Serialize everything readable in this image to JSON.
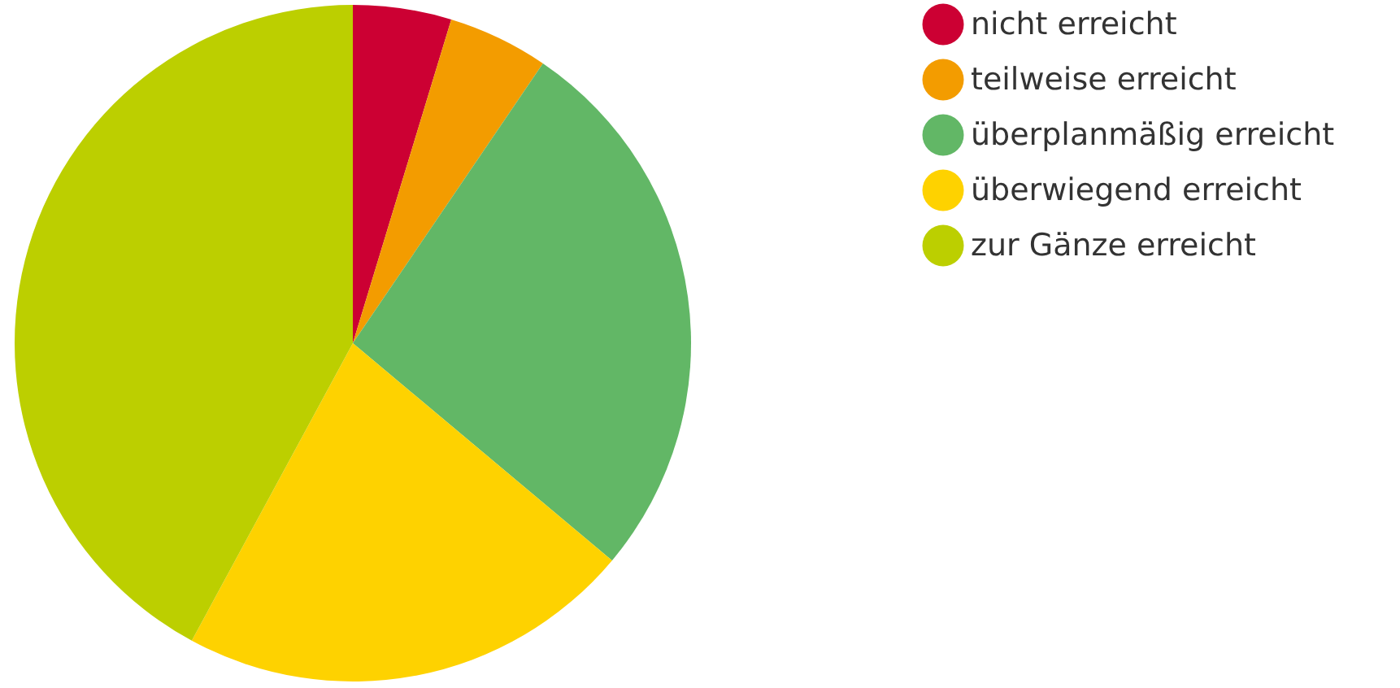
{
  "chart_data": {
    "type": "pie",
    "categories": [
      "nicht erreicht",
      "teilweise erreicht",
      "überplanmäßig erreicht",
      "überwiegend erreicht",
      "zur Gänze erreicht"
    ],
    "values": [
      4.7,
      4.8,
      26.6,
      21.8,
      42.1
    ],
    "colors": [
      "#cc0033",
      "#f39c00",
      "#62b766",
      "#fed200",
      "#bccf00"
    ],
    "legend": "right"
  }
}
